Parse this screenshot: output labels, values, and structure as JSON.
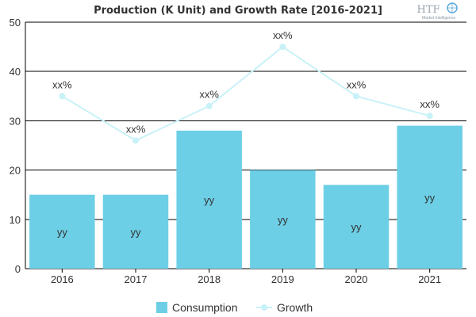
{
  "chart_data": {
    "type": "bar",
    "title": "Production (K Unit) and Growth Rate [2016-2021]",
    "categories": [
      "2016",
      "2017",
      "2018",
      "2019",
      "2020",
      "2021"
    ],
    "ylim": [
      0,
      50
    ],
    "yticks": [
      0,
      10,
      20,
      30,
      40,
      50
    ],
    "grid": true,
    "legend_position": "bottom",
    "series": [
      {
        "name": "Consumption",
        "type": "bar",
        "color": "#6ccfe6",
        "values": [
          15,
          15,
          28,
          20,
          17,
          29
        ],
        "labels": [
          "yy",
          "yy",
          "yy",
          "yy",
          "yy",
          "yy"
        ]
      },
      {
        "name": "Growth",
        "type": "line",
        "color": "#c9f1f8",
        "values": [
          35,
          26,
          33,
          45,
          35,
          31
        ],
        "labels": [
          "xx%",
          "xx%",
          "xx%",
          "xx%",
          "xx%",
          "xx%"
        ]
      }
    ]
  },
  "logo": {
    "text": "HTF",
    "subtext": "Market Intelligence",
    "icon": "globe-icon"
  }
}
